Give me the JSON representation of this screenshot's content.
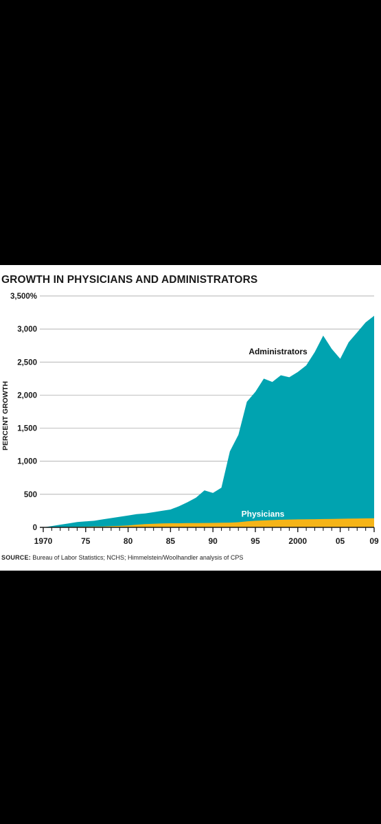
{
  "chart_data": {
    "type": "area",
    "title": "GROWTH IN PHYSICIANS AND ADMINISTRATORS",
    "ylabel": "PERCENT GROWTH",
    "xlabel": "",
    "ylim": [
      0,
      3500
    ],
    "xlim": [
      1970,
      2009
    ],
    "y_ticks": [
      0,
      500,
      1000,
      1500,
      2000,
      2500,
      3000,
      3500
    ],
    "y_tick_labels": [
      "0",
      "500",
      "1,000",
      "1,500",
      "2,000",
      "2,500",
      "3,000",
      "3,500%"
    ],
    "x_major_ticks": [
      1970,
      1975,
      1980,
      1985,
      1990,
      1995,
      2000,
      2005,
      2009
    ],
    "x_tick_labels": [
      "1970",
      "75",
      "80",
      "85",
      "90",
      "95",
      "2000",
      "05",
      "09"
    ],
    "grid": true,
    "series": [
      {
        "name": "Administrators",
        "color": "#00a3b0",
        "x": [
          1970,
          1971,
          1972,
          1973,
          1974,
          1975,
          1976,
          1977,
          1978,
          1979,
          1980,
          1981,
          1982,
          1983,
          1984,
          1985,
          1986,
          1987,
          1988,
          1989,
          1990,
          1991,
          1992,
          1993,
          1994,
          1995,
          1996,
          1997,
          1998,
          1999,
          2000,
          2001,
          2002,
          2003,
          2004,
          2005,
          2006,
          2007,
          2008,
          2009
        ],
        "values": [
          0,
          20,
          40,
          60,
          80,
          90,
          100,
          120,
          140,
          160,
          180,
          200,
          210,
          230,
          250,
          270,
          320,
          380,
          450,
          560,
          520,
          600,
          1150,
          1400,
          1900,
          2050,
          2250,
          2200,
          2300,
          2270,
          2350,
          2450,
          2650,
          2900,
          2700,
          2550,
          2800,
          2950,
          3100,
          3200
        ]
      },
      {
        "name": "Physicians",
        "color": "#f5b418",
        "x": [
          1970,
          1971,
          1972,
          1973,
          1974,
          1975,
          1976,
          1977,
          1978,
          1979,
          1980,
          1981,
          1982,
          1983,
          1984,
          1985,
          1986,
          1987,
          1988,
          1989,
          1990,
          1991,
          1992,
          1993,
          1994,
          1995,
          1996,
          1997,
          1998,
          1999,
          2000,
          2001,
          2002,
          2003,
          2004,
          2005,
          2006,
          2007,
          2008,
          2009
        ],
        "values": [
          0,
          2,
          4,
          6,
          8,
          10,
          12,
          14,
          18,
          22,
          28,
          40,
          50,
          55,
          60,
          62,
          62,
          64,
          65,
          66,
          68,
          70,
          72,
          78,
          90,
          100,
          105,
          110,
          115,
          118,
          120,
          122,
          124,
          126,
          128,
          130,
          132,
          134,
          136,
          138
        ]
      }
    ],
    "annotations": [
      "Administrators",
      "Physicians"
    ]
  },
  "source": {
    "label": "SOURCE:",
    "text": " Bureau of Labor Statistics; NCHS; Himmelstein/Woolhandler analysis of CPS"
  }
}
